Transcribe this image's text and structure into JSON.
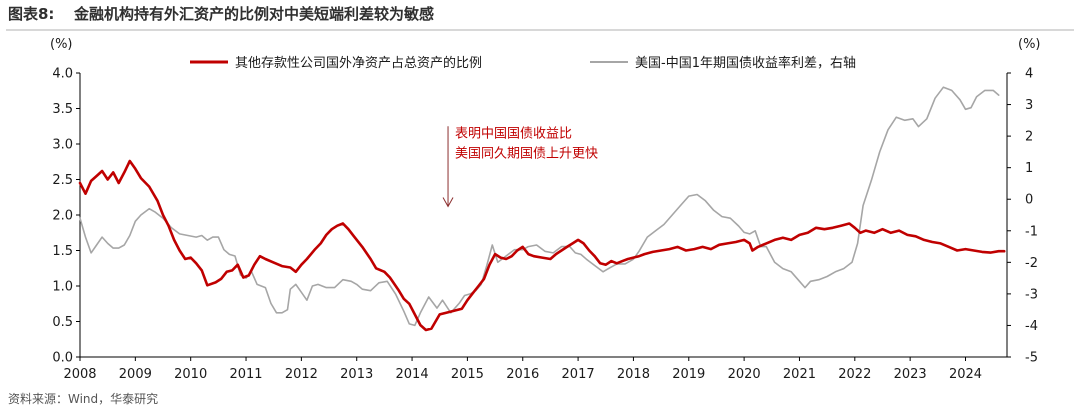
{
  "figure": {
    "label": "图表8:",
    "title": "金融机构持有外汇资产的比例对中美短端利差较为敏感",
    "source": "资料来源：Wind，华泰研究"
  },
  "chart_data": {
    "type": "line",
    "left_unit": "(%)",
    "right_unit": "(%)",
    "left_ylim": [
      0,
      4
    ],
    "left_ticks": [
      "0.0",
      "0.5",
      "1.0",
      "1.5",
      "2.0",
      "2.5",
      "3.0",
      "3.5",
      "4.0"
    ],
    "right_ylim": [
      -5,
      4
    ],
    "right_ticks": [
      "-5",
      "-4",
      "-3",
      "-2",
      "-1",
      "0",
      "1",
      "2",
      "3",
      "4"
    ],
    "x_range": [
      2008.0,
      2024.75
    ],
    "x_ticks": [
      "2008",
      "2009",
      "2010",
      "2011",
      "2012",
      "2013",
      "2014",
      "2015",
      "2016",
      "2017",
      "2018",
      "2019",
      "2020",
      "2021",
      "2022",
      "2023",
      "2024"
    ],
    "annotation": {
      "lines": [
        "表明中国国债收益比",
        "美国同久期国债上升更快"
      ],
      "arrow_x": 2014.65,
      "arrow_from_y": 3.25,
      "arrow_to_y": 2.12
    },
    "series": [
      {
        "name": "其他存款性公司国外净资产占总资产的比例",
        "axis": "left",
        "color": "#c00000",
        "points": [
          [
            2008.0,
            2.45
          ],
          [
            2008.1,
            2.3
          ],
          [
            2008.2,
            2.48
          ],
          [
            2008.3,
            2.55
          ],
          [
            2008.4,
            2.62
          ],
          [
            2008.5,
            2.5
          ],
          [
            2008.6,
            2.6
          ],
          [
            2008.7,
            2.45
          ],
          [
            2008.8,
            2.6
          ],
          [
            2008.9,
            2.76
          ],
          [
            2009.0,
            2.65
          ],
          [
            2009.1,
            2.52
          ],
          [
            2009.25,
            2.4
          ],
          [
            2009.4,
            2.2
          ],
          [
            2009.5,
            2.0
          ],
          [
            2009.6,
            1.85
          ],
          [
            2009.7,
            1.65
          ],
          [
            2009.8,
            1.5
          ],
          [
            2009.9,
            1.38
          ],
          [
            2010.0,
            1.4
          ],
          [
            2010.1,
            1.32
          ],
          [
            2010.2,
            1.22
          ],
          [
            2010.3,
            1.01
          ],
          [
            2010.45,
            1.05
          ],
          [
            2010.55,
            1.1
          ],
          [
            2010.65,
            1.2
          ],
          [
            2010.75,
            1.22
          ],
          [
            2010.85,
            1.3
          ],
          [
            2010.95,
            1.12
          ],
          [
            2011.05,
            1.15
          ],
          [
            2011.15,
            1.3
          ],
          [
            2011.25,
            1.42
          ],
          [
            2011.35,
            1.38
          ],
          [
            2011.5,
            1.33
          ],
          [
            2011.65,
            1.28
          ],
          [
            2011.8,
            1.26
          ],
          [
            2011.9,
            1.2
          ],
          [
            2012.0,
            1.3
          ],
          [
            2012.1,
            1.38
          ],
          [
            2012.25,
            1.52
          ],
          [
            2012.35,
            1.6
          ],
          [
            2012.45,
            1.72
          ],
          [
            2012.55,
            1.8
          ],
          [
            2012.65,
            1.85
          ],
          [
            2012.75,
            1.88
          ],
          [
            2012.85,
            1.8
          ],
          [
            2012.95,
            1.7
          ],
          [
            2013.1,
            1.55
          ],
          [
            2013.25,
            1.38
          ],
          [
            2013.35,
            1.25
          ],
          [
            2013.5,
            1.2
          ],
          [
            2013.6,
            1.12
          ],
          [
            2013.75,
            0.95
          ],
          [
            2013.85,
            0.82
          ],
          [
            2013.95,
            0.75
          ],
          [
            2014.05,
            0.6
          ],
          [
            2014.15,
            0.45
          ],
          [
            2014.25,
            0.38
          ],
          [
            2014.35,
            0.4
          ],
          [
            2014.5,
            0.6
          ],
          [
            2014.6,
            0.62
          ],
          [
            2014.75,
            0.65
          ],
          [
            2014.9,
            0.68
          ],
          [
            2015.0,
            0.8
          ],
          [
            2015.1,
            0.9
          ],
          [
            2015.2,
            1.0
          ],
          [
            2015.3,
            1.1
          ],
          [
            2015.4,
            1.3
          ],
          [
            2015.5,
            1.45
          ],
          [
            2015.6,
            1.4
          ],
          [
            2015.7,
            1.38
          ],
          [
            2015.8,
            1.42
          ],
          [
            2015.9,
            1.5
          ],
          [
            2016.0,
            1.55
          ],
          [
            2016.1,
            1.45
          ],
          [
            2016.2,
            1.42
          ],
          [
            2016.35,
            1.4
          ],
          [
            2016.5,
            1.38
          ],
          [
            2016.6,
            1.45
          ],
          [
            2016.7,
            1.5
          ],
          [
            2016.8,
            1.55
          ],
          [
            2016.9,
            1.6
          ],
          [
            2017.0,
            1.65
          ],
          [
            2017.1,
            1.6
          ],
          [
            2017.2,
            1.5
          ],
          [
            2017.3,
            1.42
          ],
          [
            2017.4,
            1.32
          ],
          [
            2017.5,
            1.3
          ],
          [
            2017.6,
            1.35
          ],
          [
            2017.7,
            1.32
          ],
          [
            2017.8,
            1.35
          ],
          [
            2017.9,
            1.38
          ],
          [
            2018.0,
            1.4
          ],
          [
            2018.1,
            1.42
          ],
          [
            2018.2,
            1.45
          ],
          [
            2018.35,
            1.48
          ],
          [
            2018.5,
            1.5
          ],
          [
            2018.65,
            1.52
          ],
          [
            2018.8,
            1.55
          ],
          [
            2018.95,
            1.5
          ],
          [
            2019.1,
            1.52
          ],
          [
            2019.25,
            1.55
          ],
          [
            2019.4,
            1.52
          ],
          [
            2019.55,
            1.58
          ],
          [
            2019.7,
            1.6
          ],
          [
            2019.85,
            1.62
          ],
          [
            2020.0,
            1.65
          ],
          [
            2020.1,
            1.6
          ],
          [
            2020.15,
            1.5
          ],
          [
            2020.25,
            1.55
          ],
          [
            2020.4,
            1.6
          ],
          [
            2020.55,
            1.65
          ],
          [
            2020.7,
            1.68
          ],
          [
            2020.85,
            1.65
          ],
          [
            2021.0,
            1.72
          ],
          [
            2021.15,
            1.75
          ],
          [
            2021.3,
            1.82
          ],
          [
            2021.45,
            1.8
          ],
          [
            2021.6,
            1.82
          ],
          [
            2021.75,
            1.85
          ],
          [
            2021.9,
            1.88
          ],
          [
            2022.0,
            1.82
          ],
          [
            2022.1,
            1.75
          ],
          [
            2022.2,
            1.78
          ],
          [
            2022.35,
            1.75
          ],
          [
            2022.5,
            1.8
          ],
          [
            2022.65,
            1.75
          ],
          [
            2022.8,
            1.78
          ],
          [
            2022.95,
            1.72
          ],
          [
            2023.1,
            1.7
          ],
          [
            2023.25,
            1.65
          ],
          [
            2023.4,
            1.62
          ],
          [
            2023.55,
            1.6
          ],
          [
            2023.7,
            1.55
          ],
          [
            2023.85,
            1.5
          ],
          [
            2024.0,
            1.52
          ],
          [
            2024.15,
            1.5
          ],
          [
            2024.3,
            1.48
          ],
          [
            2024.45,
            1.47
          ],
          [
            2024.6,
            1.49
          ],
          [
            2024.7,
            1.49
          ]
        ]
      },
      {
        "name": "美国-中国1年期国债收益率利差，右轴",
        "axis": "right",
        "color": "#a6a6a6",
        "points": [
          [
            2008.0,
            -0.6
          ],
          [
            2008.1,
            -1.2
          ],
          [
            2008.2,
            -1.7
          ],
          [
            2008.3,
            -1.45
          ],
          [
            2008.4,
            -1.2
          ],
          [
            2008.5,
            -1.4
          ],
          [
            2008.6,
            -1.55
          ],
          [
            2008.7,
            -1.55
          ],
          [
            2008.8,
            -1.45
          ],
          [
            2008.9,
            -1.15
          ],
          [
            2009.0,
            -0.7
          ],
          [
            2009.1,
            -0.5
          ],
          [
            2009.25,
            -0.3
          ],
          [
            2009.35,
            -0.4
          ],
          [
            2009.5,
            -0.6
          ],
          [
            2009.65,
            -0.9
          ],
          [
            2009.8,
            -1.1
          ],
          [
            2009.95,
            -1.15
          ],
          [
            2010.1,
            -1.2
          ],
          [
            2010.2,
            -1.15
          ],
          [
            2010.3,
            -1.3
          ],
          [
            2010.4,
            -1.2
          ],
          [
            2010.5,
            -1.2
          ],
          [
            2010.6,
            -1.6
          ],
          [
            2010.7,
            -1.75
          ],
          [
            2010.8,
            -1.8
          ],
          [
            2010.9,
            -2.4
          ],
          [
            2011.0,
            -2.5
          ],
          [
            2011.1,
            -2.3
          ],
          [
            2011.2,
            -2.7
          ],
          [
            2011.35,
            -2.8
          ],
          [
            2011.45,
            -3.3
          ],
          [
            2011.55,
            -3.6
          ],
          [
            2011.65,
            -3.6
          ],
          [
            2011.75,
            -3.5
          ],
          [
            2011.8,
            -2.85
          ],
          [
            2011.9,
            -2.7
          ],
          [
            2012.0,
            -2.95
          ],
          [
            2012.1,
            -3.2
          ],
          [
            2012.2,
            -2.75
          ],
          [
            2012.3,
            -2.7
          ],
          [
            2012.45,
            -2.8
          ],
          [
            2012.6,
            -2.8
          ],
          [
            2012.75,
            -2.55
          ],
          [
            2012.9,
            -2.6
          ],
          [
            2013.0,
            -2.7
          ],
          [
            2013.1,
            -2.85
          ],
          [
            2013.25,
            -2.9
          ],
          [
            2013.4,
            -2.65
          ],
          [
            2013.55,
            -2.6
          ],
          [
            2013.7,
            -3.0
          ],
          [
            2013.85,
            -3.55
          ],
          [
            2013.95,
            -3.95
          ],
          [
            2014.05,
            -4.0
          ],
          [
            2014.15,
            -3.6
          ],
          [
            2014.3,
            -3.1
          ],
          [
            2014.45,
            -3.45
          ],
          [
            2014.55,
            -3.2
          ],
          [
            2014.7,
            -3.6
          ],
          [
            2014.85,
            -3.3
          ],
          [
            2014.95,
            -3.05
          ],
          [
            2015.05,
            -3.0
          ],
          [
            2015.15,
            -2.9
          ],
          [
            2015.25,
            -2.7
          ],
          [
            2015.35,
            -2.1
          ],
          [
            2015.45,
            -1.45
          ],
          [
            2015.55,
            -2.0
          ],
          [
            2015.7,
            -1.8
          ],
          [
            2015.85,
            -1.6
          ],
          [
            2016.0,
            -1.6
          ],
          [
            2016.1,
            -1.5
          ],
          [
            2016.25,
            -1.45
          ],
          [
            2016.4,
            -1.65
          ],
          [
            2016.55,
            -1.7
          ],
          [
            2016.7,
            -1.5
          ],
          [
            2016.85,
            -1.5
          ],
          [
            2016.95,
            -1.7
          ],
          [
            2017.05,
            -1.75
          ],
          [
            2017.15,
            -1.9
          ],
          [
            2017.3,
            -2.1
          ],
          [
            2017.45,
            -2.3
          ],
          [
            2017.55,
            -2.2
          ],
          [
            2017.7,
            -2.05
          ],
          [
            2017.85,
            -2.05
          ],
          [
            2018.0,
            -1.9
          ],
          [
            2018.1,
            -1.65
          ],
          [
            2018.25,
            -1.2
          ],
          [
            2018.4,
            -1.0
          ],
          [
            2018.55,
            -0.8
          ],
          [
            2018.7,
            -0.5
          ],
          [
            2018.85,
            -0.2
          ],
          [
            2019.0,
            0.1
          ],
          [
            2019.15,
            0.15
          ],
          [
            2019.3,
            -0.05
          ],
          [
            2019.45,
            -0.35
          ],
          [
            2019.6,
            -0.55
          ],
          [
            2019.75,
            -0.6
          ],
          [
            2019.9,
            -0.85
          ],
          [
            2020.0,
            -1.05
          ],
          [
            2020.1,
            -1.1
          ],
          [
            2020.2,
            -1.0
          ],
          [
            2020.3,
            -1.5
          ],
          [
            2020.4,
            -1.5
          ],
          [
            2020.55,
            -2.0
          ],
          [
            2020.7,
            -2.2
          ],
          [
            2020.85,
            -2.3
          ],
          [
            2021.0,
            -2.6
          ],
          [
            2021.1,
            -2.8
          ],
          [
            2021.2,
            -2.6
          ],
          [
            2021.35,
            -2.55
          ],
          [
            2021.5,
            -2.45
          ],
          [
            2021.65,
            -2.3
          ],
          [
            2021.8,
            -2.2
          ],
          [
            2021.95,
            -2.0
          ],
          [
            2022.05,
            -1.4
          ],
          [
            2022.15,
            -0.2
          ],
          [
            2022.3,
            0.6
          ],
          [
            2022.45,
            1.5
          ],
          [
            2022.6,
            2.2
          ],
          [
            2022.75,
            2.6
          ],
          [
            2022.9,
            2.5
          ],
          [
            2023.05,
            2.55
          ],
          [
            2023.15,
            2.3
          ],
          [
            2023.3,
            2.55
          ],
          [
            2023.45,
            3.2
          ],
          [
            2023.6,
            3.55
          ],
          [
            2023.75,
            3.45
          ],
          [
            2023.9,
            3.15
          ],
          [
            2024.0,
            2.85
          ],
          [
            2024.1,
            2.9
          ],
          [
            2024.2,
            3.25
          ],
          [
            2024.35,
            3.45
          ],
          [
            2024.5,
            3.45
          ],
          [
            2024.6,
            3.3
          ]
        ]
      }
    ]
  }
}
